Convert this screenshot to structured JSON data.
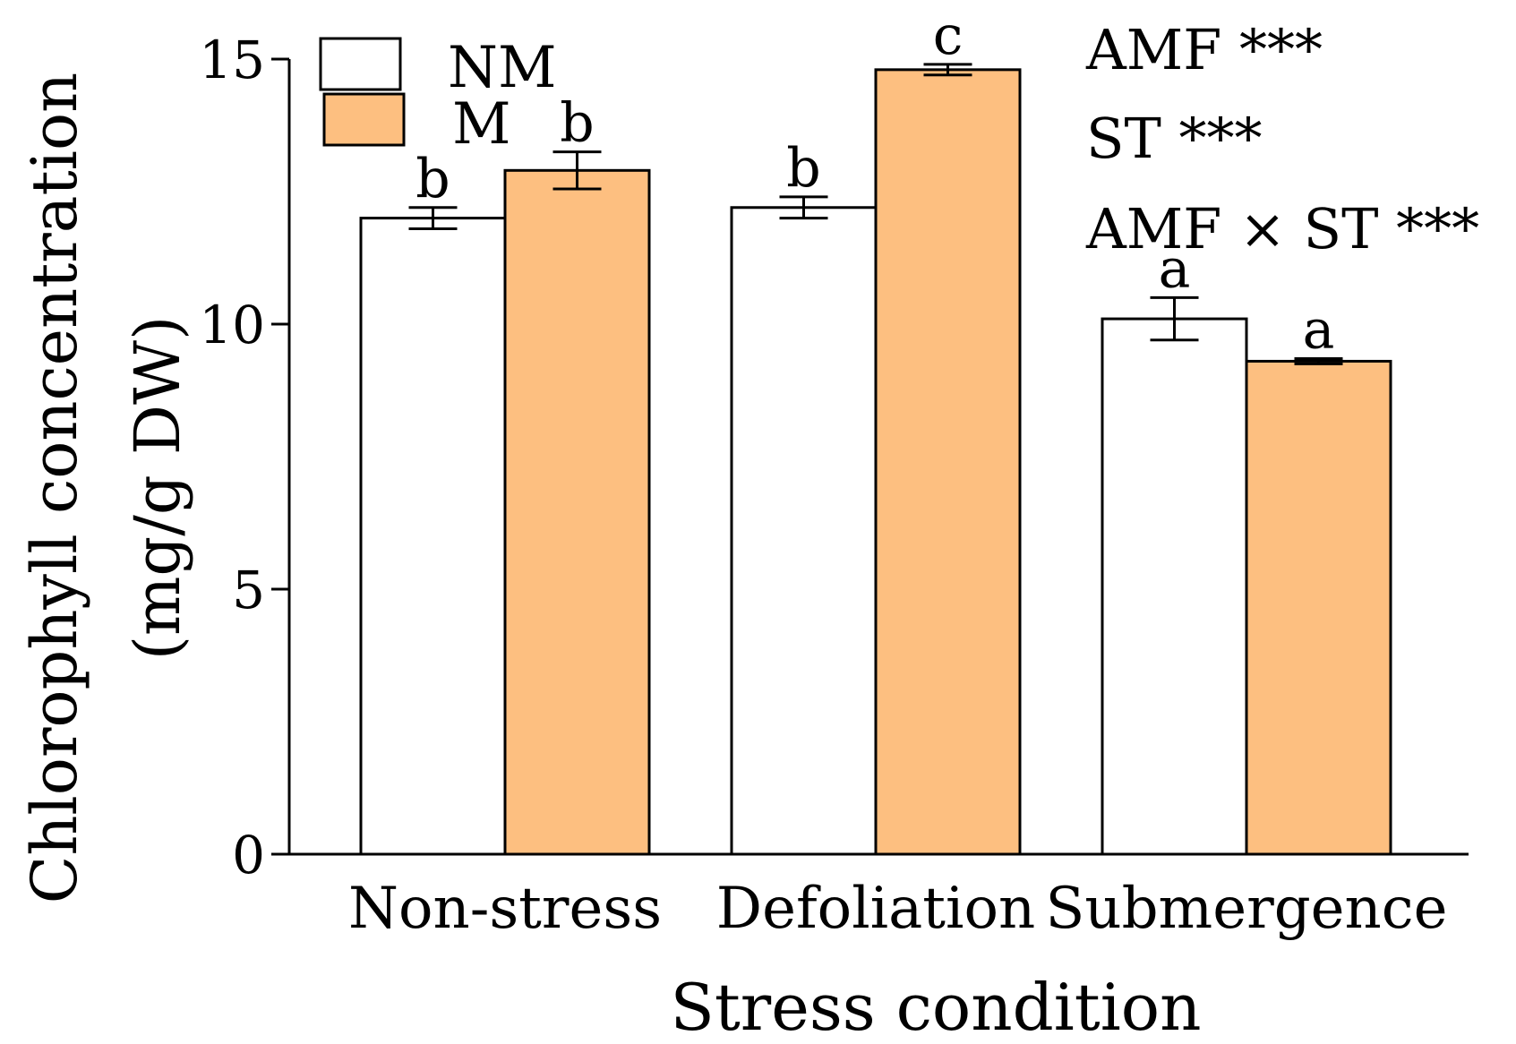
{
  "chart_data": {
    "type": "bar",
    "title": "",
    "xlabel": "Stress condition",
    "ylabel_line1": "Chlorophyll concentration",
    "ylabel_line2": "(mg/g DW)",
    "ylim": [
      0,
      15
    ],
    "yticks": [
      0,
      5,
      10,
      15
    ],
    "categories": [
      "Non-stress",
      "Defoliation",
      "Submergence"
    ],
    "series": [
      {
        "name": "NM",
        "color": "#ffffff",
        "values": [
          12.0,
          12.2,
          10.1
        ],
        "errors": [
          0.2,
          0.2,
          0.4
        ],
        "letters": [
          "b",
          "b",
          "a"
        ]
      },
      {
        "name": "M",
        "color": "#fdbf80",
        "values": [
          12.9,
          14.8,
          9.3
        ],
        "errors": [
          0.35,
          0.1,
          0.05
        ],
        "letters": [
          "b",
          "c",
          "a"
        ]
      }
    ],
    "legend_position": "top-left",
    "annotations": [
      "AMF ***",
      "ST ***",
      "AMF × ST ***"
    ]
  }
}
